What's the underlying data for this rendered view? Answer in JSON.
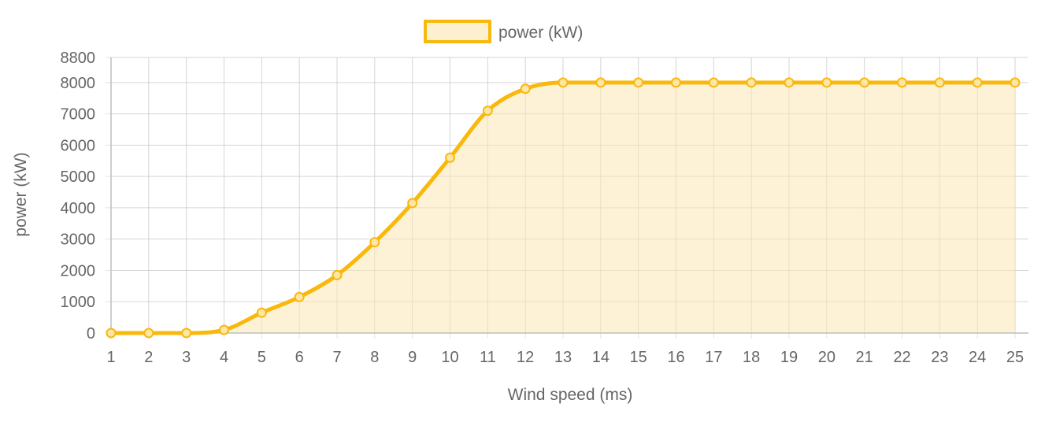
{
  "colors": {
    "line": "#f9b80c",
    "fill": "#fdf0cf",
    "grid": "#e3e3e3",
    "axis": "#bdbdbd",
    "text": "#666666"
  },
  "chart_data": {
    "type": "area",
    "title": "",
    "xlabel": "Wind speed (ms)",
    "ylabel": "power (kW)",
    "ylim": [
      0,
      8800
    ],
    "yticks": [
      0,
      1000,
      2000,
      3000,
      4000,
      5000,
      6000,
      7000,
      8000,
      8800
    ],
    "grid": true,
    "legend_position": "top-center",
    "categories": [
      "1",
      "2",
      "3",
      "4",
      "5",
      "6",
      "7",
      "8",
      "9",
      "10",
      "11",
      "12",
      "13",
      "14",
      "15",
      "16",
      "17",
      "18",
      "19",
      "20",
      "21",
      "22",
      "23",
      "24",
      "25"
    ],
    "series": [
      {
        "name": "power (kW)",
        "values": [
          0,
          0,
          0,
          100,
          650,
          1150,
          1850,
          2900,
          4150,
          5600,
          7100,
          7800,
          8000,
          8000,
          8000,
          8000,
          8000,
          8000,
          8000,
          8000,
          8000,
          8000,
          8000,
          8000,
          8000
        ]
      }
    ]
  }
}
